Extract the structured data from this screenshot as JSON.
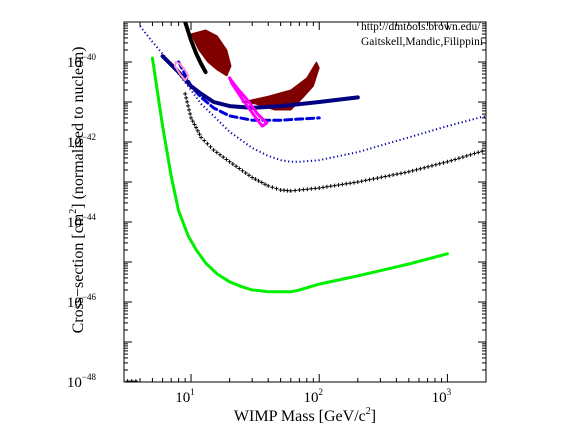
{
  "chart_data": {
    "type": "line",
    "xlabel": "WIMP Mass [GeV/c",
    "xlabel_sup": "2",
    "xlabel_end": "]",
    "ylabel": "Cross−section [cm",
    "ylabel_sup": "2",
    "ylabel_end": "] (normalised to nucleon)",
    "annotations": [
      "http://dmtools.brown.edu/",
      "Gaitskell,Mandic,Filippini"
    ],
    "x_scale": "log",
    "y_scale": "log",
    "xlim": [
      3,
      2000
    ],
    "ylim": [
      1e-48,
      1e-39
    ],
    "x_ticks": [
      {
        "value": 10,
        "base": "10",
        "exp": "1"
      },
      {
        "value": 100,
        "base": "10",
        "exp": "2"
      },
      {
        "value": 1000,
        "base": "10",
        "exp": "3"
      }
    ],
    "y_ticks": [
      {
        "value": 1e-40,
        "base": "10",
        "exp": "−40"
      },
      {
        "value": 1e-42,
        "base": "10",
        "exp": "−42"
      },
      {
        "value": 1e-44,
        "base": "10",
        "exp": "−44"
      },
      {
        "value": 1e-46,
        "base": "10",
        "exp": "−46"
      },
      {
        "value": 1e-48,
        "base": "10",
        "exp": "−48"
      }
    ],
    "grid": false,
    "series": [
      {
        "style": "solid",
        "color": "#00ee00",
        "width": 3,
        "x": [
          5.0,
          6.0,
          7.0,
          8.0,
          9.5,
          11,
          13,
          16,
          20,
          25,
          30,
          35,
          40,
          50,
          60,
          70,
          100,
          200,
          500,
          1000
        ],
        "y": [
          1.26e-40,
          2.5e-42,
          1.4e-43,
          1.9e-44,
          4.5e-45,
          2e-45,
          9.5e-46,
          5e-46,
          3.2e-46,
          2.4e-46,
          2e-46,
          1.9e-46,
          1.8e-46,
          1.8e-46,
          1.8e-46,
          2e-46,
          2.8e-46,
          4.5e-46,
          8.9e-46,
          1.6e-45
        ]
      },
      {
        "style": "cross",
        "color": "#000000",
        "width": 1,
        "x": [
          9,
          10,
          12,
          15,
          20,
          30,
          40,
          50,
          60,
          70,
          100,
          200,
          500,
          1000,
          2000
        ],
        "y": [
          1.6e-41,
          4e-42,
          1.3e-42,
          6.3e-43,
          3.2e-43,
          1.3e-43,
          8e-44,
          6.3e-44,
          6e-44,
          6.3e-44,
          7.1e-44,
          1e-43,
          1.8e-43,
          3.2e-43,
          6.3e-43
        ]
      },
      {
        "style": "dotted",
        "color": "#0000aa",
        "width": 2,
        "x": [
          4,
          5,
          6,
          8,
          10,
          12,
          15,
          20,
          30,
          40,
          50,
          60,
          70,
          100,
          200,
          500,
          1000,
          2000
        ],
        "y": [
          7.9e-40,
          3.2e-40,
          1.6e-40,
          5e-41,
          2e-41,
          8.9e-42,
          4.5e-42,
          1.8e-42,
          7.1e-43,
          4.5e-43,
          3.5e-43,
          3.2e-43,
          3.2e-43,
          3.5e-43,
          5.6e-43,
          1.3e-42,
          2.5e-42,
          4.5e-42
        ]
      },
      {
        "style": "dashed",
        "color": "#0000dd",
        "width": 3,
        "x": [
          8,
          10,
          12,
          15,
          20,
          30,
          50,
          100
        ],
        "y": [
          1e-40,
          2.5e-41,
          1.3e-41,
          7.1e-42,
          4.5e-42,
          3.5e-42,
          3.5e-42,
          4e-42
        ]
      },
      {
        "style": "solid",
        "color": "#000080",
        "width": 4,
        "x": [
          6,
          8,
          10,
          12,
          15,
          20,
          30,
          50,
          100,
          200
        ],
        "y": [
          1.4e-40,
          5.6e-41,
          2.5e-41,
          1.6e-41,
          1e-41,
          7.9e-42,
          7.1e-42,
          7.9e-42,
          1e-41,
          1.3e-41
        ]
      },
      {
        "style": "solid",
        "color": "#000000",
        "width": 4,
        "x": [
          9,
          10,
          11,
          12,
          13
        ],
        "y": [
          1e-39,
          3.5e-40,
          1.6e-40,
          8.9e-41,
          5.6e-41
        ]
      },
      {
        "style": "solid",
        "color": "#ff00ff",
        "width": 3,
        "x": [
          20,
          21,
          23,
          26,
          29,
          33,
          37,
          39,
          36,
          32,
          29,
          26,
          23,
          21,
          20
        ],
        "y": [
          4e-41,
          3.2e-41,
          2.2e-41,
          1.4e-41,
          9e-42,
          5e-42,
          3.5e-42,
          3e-42,
          2.5e-42,
          4e-42,
          6.3e-42,
          1e-41,
          1.8e-41,
          2.8e-41,
          4e-41
        ]
      },
      {
        "style": "solid",
        "color": "#ff99cc",
        "width": 2,
        "x": [
          7.5,
          8.2,
          9.0,
          9.5,
          9.0,
          8.2,
          7.6,
          7.5
        ],
        "y": [
          7.9e-41,
          5e-41,
          3.5e-41,
          4.5e-41,
          6.3e-41,
          8.9e-41,
          1e-40,
          7.9e-41
        ]
      }
    ],
    "regions": [
      {
        "color": "#800000",
        "x": [
          10,
          13,
          16,
          19,
          20.5,
          19,
          16,
          13.5,
          11.5,
          10
        ],
        "y": [
          5e-40,
          6.3e-40,
          4.5e-40,
          2e-40,
          7.9e-41,
          4.5e-41,
          6.3e-41,
          1e-40,
          2e-40,
          5e-40
        ]
      },
      {
        "color": "#800000",
        "x": [
          25,
          40,
          60,
          80,
          95,
          100,
          90,
          75,
          60,
          45,
          32,
          25,
          25
        ],
        "y": [
          1e-41,
          1.4e-41,
          2e-41,
          4e-41,
          1e-40,
          7.1e-41,
          2.5e-41,
          1.3e-41,
          6.3e-42,
          6.3e-42,
          8.9e-42,
          1e-41,
          1e-41
        ]
      }
    ],
    "baseline_segment": {
      "x": [
        3.2,
        4.0
      ],
      "y": [
        1e-48,
        1e-48
      ],
      "style": "cross"
    }
  }
}
